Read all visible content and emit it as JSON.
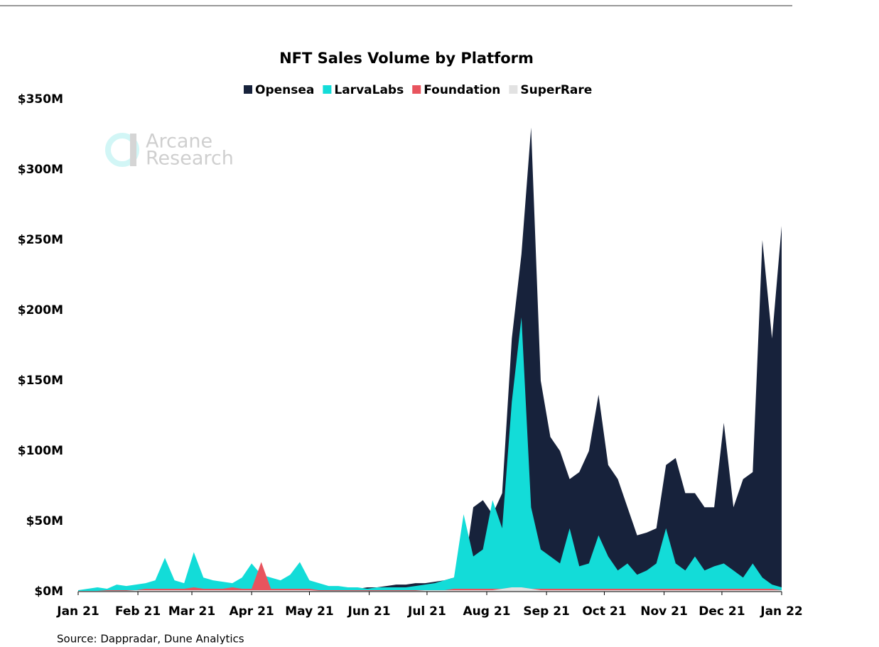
{
  "chart_data": {
    "type": "area",
    "title": "NFT Sales Volume by Platform",
    "watermark": [
      "Arcane",
      "Research"
    ],
    "source": "Source: Dappradar, Dune Analytics",
    "x": [
      0,
      5,
      10,
      15,
      20,
      25,
      30,
      35,
      40,
      45,
      50,
      55,
      60,
      65,
      70,
      75,
      80,
      85,
      90,
      95,
      100,
      105,
      110,
      115,
      120,
      125,
      130,
      135,
      140,
      145,
      150,
      155,
      160,
      165,
      170,
      175,
      180,
      185,
      190,
      195,
      200,
      205,
      210,
      215,
      220,
      225,
      230,
      235,
      240,
      245,
      250,
      255,
      260,
      265,
      270,
      275,
      280,
      285,
      290,
      295,
      300,
      305,
      310,
      315,
      320,
      325,
      330,
      335,
      340,
      345,
      350,
      355,
      360,
      365
    ],
    "xlim": [
      0,
      365
    ],
    "xticks": [
      {
        "value": 0,
        "label": "Jan 21"
      },
      {
        "value": 31,
        "label": "Feb 21"
      },
      {
        "value": 59,
        "label": "Mar 21"
      },
      {
        "value": 90,
        "label": "Apr 21"
      },
      {
        "value": 120,
        "label": "May 21"
      },
      {
        "value": 151,
        "label": "Jun 21"
      },
      {
        "value": 181,
        "label": "Jul 21"
      },
      {
        "value": 212,
        "label": "Aug 21"
      },
      {
        "value": 243,
        "label": "Sep 21"
      },
      {
        "value": 273,
        "label": "Oct 21"
      },
      {
        "value": 304,
        "label": "Nov 21"
      },
      {
        "value": 334,
        "label": "Dec 21"
      },
      {
        "value": 365,
        "label": "Jan 22"
      }
    ],
    "ylim": [
      0,
      350
    ],
    "yticks": [
      {
        "value": 0,
        "label": "$0M"
      },
      {
        "value": 50,
        "label": "$50M"
      },
      {
        "value": 100,
        "label": "$100M"
      },
      {
        "value": 150,
        "label": "$150M"
      },
      {
        "value": 200,
        "label": "$200M"
      },
      {
        "value": 250,
        "label": "$250M"
      },
      {
        "value": 300,
        "label": "$300M"
      },
      {
        "value": 350,
        "label": "$350M"
      }
    ],
    "series": [
      {
        "name": "Opensea",
        "color": "#17223b",
        "values": [
          0.5,
          0.5,
          1,
          1,
          1.5,
          1,
          2,
          2,
          3,
          3,
          3,
          3,
          3,
          4,
          3,
          3,
          4,
          3,
          4,
          4,
          3,
          4,
          3,
          3,
          3,
          2,
          2,
          2,
          2,
          2,
          3,
          3,
          4,
          5,
          5,
          6,
          6,
          7,
          8,
          10,
          12,
          60,
          65,
          55,
          70,
          180,
          240,
          330,
          150,
          110,
          100,
          80,
          85,
          100,
          140,
          90,
          80,
          60,
          40,
          42,
          45,
          90,
          95,
          70,
          70,
          60,
          60,
          120,
          60,
          80,
          85,
          250,
          180,
          260
        ]
      },
      {
        "name": "LarvaLabs",
        "color": "#13dcd8",
        "values": [
          1,
          2,
          3,
          2,
          5,
          4,
          5,
          6,
          8,
          24,
          8,
          6,
          28,
          10,
          8,
          7,
          6,
          10,
          20,
          12,
          10,
          8,
          12,
          21,
          8,
          6,
          4,
          4,
          3,
          3,
          2,
          3,
          3,
          3,
          3,
          4,
          5,
          6,
          8,
          10,
          55,
          25,
          30,
          65,
          45,
          135,
          195,
          60,
          30,
          25,
          20,
          45,
          18,
          20,
          40,
          25,
          15,
          20,
          12,
          15,
          20,
          45,
          20,
          15,
          25,
          15,
          18,
          20,
          15,
          10,
          20,
          10,
          5,
          3
        ]
      },
      {
        "name": "Foundation",
        "color": "#e8545e",
        "values": [
          0,
          0.5,
          0.5,
          1,
          1,
          1,
          1,
          2,
          2,
          2,
          2,
          2,
          3,
          2,
          2,
          2,
          3,
          2,
          2,
          21,
          2,
          2,
          2,
          2,
          2,
          1,
          1,
          1,
          1,
          1,
          1,
          1,
          1,
          1,
          1,
          1,
          1,
          1,
          1,
          2,
          2,
          2,
          2,
          2,
          2,
          3,
          3,
          2,
          2,
          2,
          2,
          2,
          2,
          2,
          2,
          2,
          2,
          2,
          2,
          2,
          2,
          2,
          2,
          2,
          2,
          2,
          2,
          2,
          2,
          2,
          2,
          2,
          2,
          1
        ]
      },
      {
        "name": "SuperRare",
        "color": "#e2e2e2",
        "values": [
          0.5,
          0.5,
          0.5,
          0.5,
          0.5,
          0.5,
          1,
          1,
          1,
          1,
          1,
          1,
          1,
          1,
          1,
          1,
          1,
          1,
          1,
          1,
          1,
          1,
          1,
          1,
          1,
          0.5,
          0.5,
          0.5,
          0.5,
          0.5,
          0.5,
          0.5,
          0.5,
          0.5,
          0.5,
          0.5,
          1,
          1,
          1,
          1,
          1,
          1,
          1,
          1,
          2,
          3,
          3,
          2,
          1,
          1,
          1,
          1,
          1,
          1,
          1,
          1,
          1,
          1,
          1,
          1,
          1,
          1,
          1,
          1,
          1,
          1,
          1,
          1,
          1,
          1,
          1,
          1,
          1,
          1
        ]
      }
    ]
  }
}
